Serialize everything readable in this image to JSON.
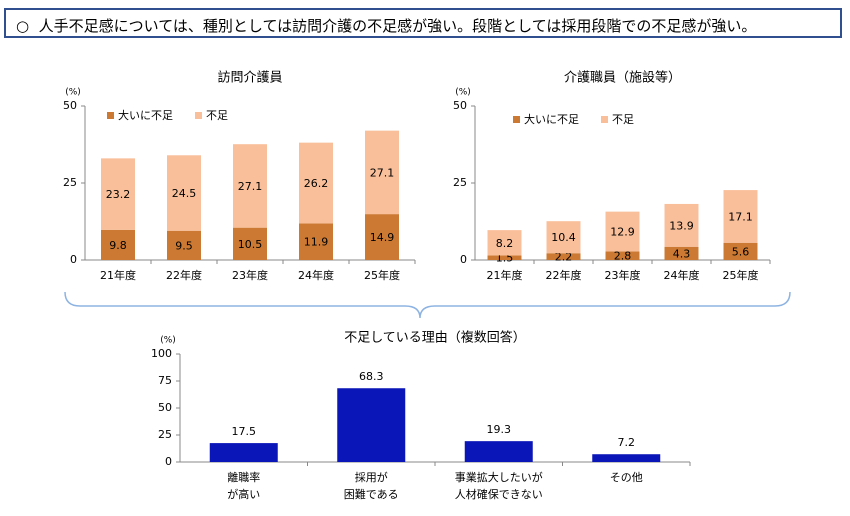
{
  "headline": {
    "marker": "○",
    "text": "人手不足感については、種別としては訪問介護の不足感が強い。段階としては採用段階での不足感が強い。"
  },
  "colors": {
    "dark_segment": "#cc7a33",
    "light_segment": "#f9bf9a",
    "reason_bar": "#0b16b8",
    "border": "#2f4f8f",
    "brace": "#8db3e2"
  },
  "chart_data": [
    {
      "type": "bar",
      "stacked": true,
      "title": "訪問介護員",
      "unit": "(%)",
      "categories": [
        "21年度",
        "22年度",
        "23年度",
        "24年度",
        "25年度"
      ],
      "series": [
        {
          "name": "大いに不足",
          "color": "#cc7a33",
          "values": [
            9.8,
            9.5,
            10.5,
            11.9,
            14.9
          ]
        },
        {
          "name": "不足",
          "color": "#f9bf9a",
          "values": [
            23.2,
            24.5,
            27.1,
            26.2,
            27.1
          ]
        }
      ],
      "ylim": [
        0,
        50
      ],
      "yticks": [
        0,
        25,
        50
      ],
      "legend": "top-left",
      "grid": false
    },
    {
      "type": "bar",
      "stacked": true,
      "title": "介護職員（施設等）",
      "unit": "(%)",
      "categories": [
        "21年度",
        "22年度",
        "23年度",
        "24年度",
        "25年度"
      ],
      "series": [
        {
          "name": "大いに不足",
          "color": "#cc7a33",
          "values": [
            1.5,
            2.2,
            2.8,
            4.3,
            5.6
          ]
        },
        {
          "name": "不足",
          "color": "#f9bf9a",
          "values": [
            8.2,
            10.4,
            12.9,
            13.9,
            17.1
          ]
        }
      ],
      "ylim": [
        0,
        50
      ],
      "yticks": [
        0,
        25,
        50
      ],
      "legend": "top-left",
      "grid": false
    },
    {
      "type": "bar",
      "stacked": false,
      "title": "不足している理由（複数回答）",
      "unit": "(%)",
      "categories": [
        [
          "離職率",
          "が高い"
        ],
        [
          "採用が",
          "困難である"
        ],
        [
          "事業拡大したいが",
          "人材確保できない"
        ],
        [
          "その他"
        ]
      ],
      "values": [
        17.5,
        68.3,
        19.3,
        7.2
      ],
      "color": "#0b16b8",
      "ylim": [
        0,
        100
      ],
      "yticks": [
        0,
        25,
        50,
        75,
        100
      ],
      "grid": false
    }
  ]
}
